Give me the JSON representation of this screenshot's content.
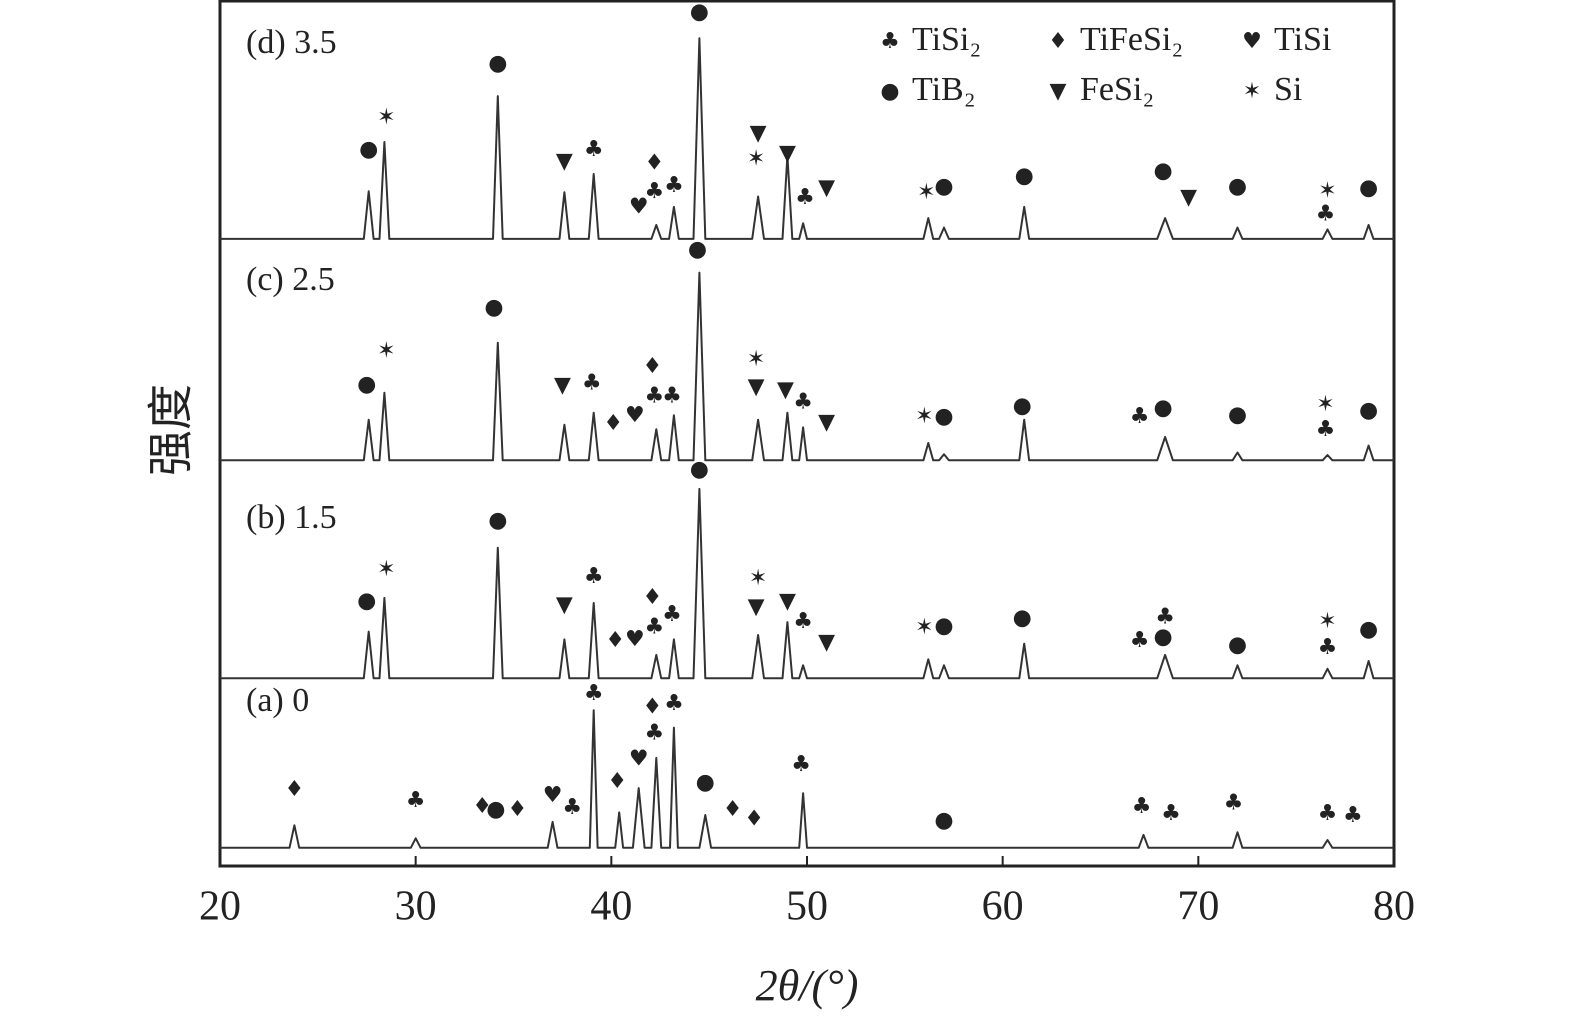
{
  "chart_data": {
    "type": "line",
    "xlabel": "2θ/(°)",
    "ylabel": "强度",
    "xlim": [
      20,
      80
    ],
    "xticks": [
      20,
      30,
      40,
      50,
      60,
      70,
      80
    ],
    "ylim": [
      0,
      100
    ],
    "legend": "upper right",
    "legend_items": [
      {
        "name": "TiSi₂",
        "symbol": "♣"
      },
      {
        "name": "TiFeSi₂",
        "symbol": "♦"
      },
      {
        "name": "TiSi",
        "symbol": "♥"
      },
      {
        "name": "TiB₂",
        "symbol": "●"
      },
      {
        "name": "FeSi₂",
        "symbol": "▼"
      },
      {
        "name": "Si",
        "symbol": "✶"
      }
    ],
    "series": [
      {
        "name": "(a) 0",
        "color": "#333333",
        "x": [
          20,
          23.55,
          23.8,
          24.05,
          29.75,
          30.0,
          30.25,
          36.75,
          37.0,
          37.25,
          38.9,
          39.1,
          39.3,
          40.2,
          40.4,
          40.6,
          41.1,
          41.4,
          41.7,
          42.05,
          42.3,
          42.55,
          43.0,
          43.2,
          43.4,
          44.5,
          44.8,
          45.1,
          49.6,
          49.8,
          50.0,
          66.95,
          67.2,
          67.45,
          71.75,
          72.0,
          72.25,
          76.35,
          76.6,
          76.85,
          80
        ],
        "values": [
          2.1,
          2.1,
          4.7,
          2.1,
          2.1,
          3.2,
          2.1,
          2.1,
          5.1,
          2.1,
          2.1,
          18.0,
          2.1,
          2.1,
          6.2,
          2.1,
          2.1,
          9.0,
          2.1,
          2.1,
          12.5,
          2.1,
          2.1,
          16.0,
          2.1,
          2.1,
          5.9,
          2.1,
          2.1,
          8.4,
          2.1,
          2.1,
          3.6,
          2.1,
          2.1,
          3.9,
          2.1,
          2.1,
          3.0,
          2.1,
          2.1
        ],
        "markers": [
          {
            "x": 23.8,
            "y": 8.8,
            "symbol": "♦"
          },
          {
            "x": 30.0,
            "y": 7.5,
            "symbol": "♣"
          },
          {
            "x": 33.4,
            "y": 6.8,
            "symbol": "♦"
          },
          {
            "x": 34.1,
            "y": 6.5,
            "symbol": "●"
          },
          {
            "x": 35.2,
            "y": 6.5,
            "symbol": "♦"
          },
          {
            "x": 37.0,
            "y": 8.1,
            "symbol": "♥"
          },
          {
            "x": 38.0,
            "y": 6.7,
            "symbol": "♣"
          },
          {
            "x": 39.1,
            "y": 19.9,
            "symbol": "♣"
          },
          {
            "x": 40.3,
            "y": 9.7,
            "symbol": "♦"
          },
          {
            "x": 41.4,
            "y": 12.3,
            "symbol": "♥"
          },
          {
            "x": 42.1,
            "y": 18.3,
            "symbol": "♦"
          },
          {
            "x": 42.2,
            "y": 15.3,
            "symbol": "♣"
          },
          {
            "x": 43.2,
            "y": 18.7,
            "symbol": "♣"
          },
          {
            "x": 44.8,
            "y": 9.6,
            "symbol": "●"
          },
          {
            "x": 46.2,
            "y": 6.5,
            "symbol": "♦"
          },
          {
            "x": 47.3,
            "y": 5.4,
            "symbol": "♦"
          },
          {
            "x": 49.7,
            "y": 11.7,
            "symbol": "♣"
          },
          {
            "x": 57.0,
            "y": 5.2,
            "symbol": "●"
          },
          {
            "x": 67.1,
            "y": 6.8,
            "symbol": "♣"
          },
          {
            "x": 68.6,
            "y": 6.0,
            "symbol": "♣"
          },
          {
            "x": 71.8,
            "y": 7.2,
            "symbol": "♣"
          },
          {
            "x": 76.6,
            "y": 6.0,
            "symbol": "♣"
          },
          {
            "x": 77.9,
            "y": 5.8,
            "symbol": "♣"
          }
        ]
      },
      {
        "name": "(b) 1.5",
        "color": "#333333",
        "x": [
          20,
          27.35,
          27.6,
          27.85,
          28.15,
          28.4,
          28.65,
          33.95,
          34.2,
          34.45,
          37.35,
          37.6,
          37.85,
          38.85,
          39.1,
          39.35,
          42.05,
          42.3,
          42.55,
          42.95,
          43.2,
          43.45,
          44.2,
          44.5,
          44.8,
          47.2,
          47.5,
          47.8,
          48.75,
          49.0,
          49.25,
          49.6,
          49.8,
          50.0,
          55.95,
          56.2,
          56.45,
          56.75,
          57.0,
          57.25,
          60.85,
          61.1,
          61.35,
          67.9,
          68.3,
          68.7,
          71.75,
          72.0,
          72.25,
          76.35,
          76.6,
          76.85,
          78.45,
          78.7,
          78.95,
          80
        ],
        "values": [
          21.7,
          21.7,
          27.1,
          21.7,
          21.7,
          31.0,
          21.7,
          21.7,
          36.8,
          21.7,
          21.7,
          26.2,
          21.7,
          21.7,
          30.4,
          21.7,
          21.7,
          24.4,
          21.7,
          21.7,
          26.2,
          21.7,
          21.7,
          43.6,
          21.7,
          21.7,
          26.7,
          21.7,
          21.7,
          28.2,
          21.7,
          21.7,
          23.2,
          21.7,
          21.7,
          23.9,
          21.7,
          21.7,
          23.2,
          21.7,
          21.7,
          25.7,
          21.7,
          21.7,
          24.4,
          21.7,
          21.7,
          23.2,
          21.7,
          21.7,
          22.8,
          21.7,
          21.7,
          23.7,
          21.7,
          21.7
        ],
        "markers": [
          {
            "x": 27.5,
            "y": 30.6,
            "symbol": "●"
          },
          {
            "x": 28.5,
            "y": 34.2,
            "symbol": "✶"
          },
          {
            "x": 34.2,
            "y": 39.9,
            "symbol": "●"
          },
          {
            "x": 37.6,
            "y": 30.1,
            "symbol": "▼"
          },
          {
            "x": 39.1,
            "y": 33.4,
            "symbol": "♣"
          },
          {
            "x": 40.2,
            "y": 26.0,
            "symbol": "♦"
          },
          {
            "x": 41.2,
            "y": 26.1,
            "symbol": "♥"
          },
          {
            "x": 42.1,
            "y": 31.0,
            "symbol": "♦"
          },
          {
            "x": 42.2,
            "y": 27.6,
            "symbol": "♣"
          },
          {
            "x": 43.1,
            "y": 29.0,
            "symbol": "♣"
          },
          {
            "x": 44.5,
            "y": 45.8,
            "symbol": "●"
          },
          {
            "x": 47.5,
            "y": 33.2,
            "symbol": "✶"
          },
          {
            "x": 47.4,
            "y": 29.9,
            "symbol": "▼"
          },
          {
            "x": 49.0,
            "y": 30.5,
            "symbol": "▼"
          },
          {
            "x": 49.8,
            "y": 28.2,
            "symbol": "♣"
          },
          {
            "x": 51.0,
            "y": 25.8,
            "symbol": "▼"
          },
          {
            "x": 56.0,
            "y": 27.5,
            "symbol": "✶"
          },
          {
            "x": 57.0,
            "y": 27.7,
            "symbol": "●"
          },
          {
            "x": 61.0,
            "y": 28.6,
            "symbol": "●"
          },
          {
            "x": 67.0,
            "y": 26.0,
            "symbol": "♣"
          },
          {
            "x": 68.2,
            "y": 26.4,
            "symbol": "●"
          },
          {
            "x": 68.3,
            "y": 28.7,
            "symbol": "♣"
          },
          {
            "x": 72.0,
            "y": 25.5,
            "symbol": "●"
          },
          {
            "x": 76.6,
            "y": 28.2,
            "symbol": "✶"
          },
          {
            "x": 76.6,
            "y": 25.2,
            "symbol": "♣"
          },
          {
            "x": 78.7,
            "y": 27.3,
            "symbol": "●"
          }
        ]
      },
      {
        "name": "(c) 2.5",
        "color": "#333333",
        "x": [
          20,
          27.35,
          27.6,
          27.85,
          28.15,
          28.4,
          28.65,
          33.95,
          34.2,
          34.45,
          37.35,
          37.6,
          37.85,
          38.85,
          39.1,
          39.35,
          42.05,
          42.3,
          42.55,
          42.95,
          43.2,
          43.45,
          44.2,
          44.5,
          44.8,
          47.2,
          47.5,
          47.8,
          48.75,
          49.0,
          49.25,
          49.6,
          49.8,
          50.0,
          55.95,
          56.2,
          56.45,
          56.75,
          57.0,
          57.25,
          60.85,
          61.1,
          61.35,
          67.9,
          68.3,
          68.7,
          71.75,
          72.0,
          72.25,
          76.35,
          76.6,
          76.85,
          78.45,
          78.7,
          78.95,
          80
        ],
        "values": [
          46.9,
          46.9,
          51.6,
          46.9,
          46.9,
          54.7,
          46.9,
          46.9,
          60.5,
          46.9,
          46.9,
          51.0,
          46.9,
          46.9,
          52.4,
          46.9,
          46.9,
          50.5,
          46.9,
          46.9,
          52.1,
          46.9,
          46.9,
          68.6,
          46.9,
          46.9,
          51.6,
          46.9,
          46.9,
          52.4,
          46.9,
          46.9,
          50.7,
          46.9,
          46.9,
          48.9,
          46.9,
          46.9,
          47.6,
          46.9,
          46.9,
          51.6,
          46.9,
          46.9,
          49.6,
          46.9,
          46.9,
          47.8,
          46.9,
          46.9,
          47.5,
          46.9,
          46.9,
          48.6,
          46.9,
          46.9
        ],
        "markers": [
          {
            "x": 27.5,
            "y": 55.6,
            "symbol": "●"
          },
          {
            "x": 28.5,
            "y": 59.5,
            "symbol": "✶"
          },
          {
            "x": 34.0,
            "y": 64.5,
            "symbol": "●"
          },
          {
            "x": 37.5,
            "y": 55.5,
            "symbol": "▼"
          },
          {
            "x": 39.0,
            "y": 55.8,
            "symbol": "♣"
          },
          {
            "x": 40.1,
            "y": 51.1,
            "symbol": "♦"
          },
          {
            "x": 41.2,
            "y": 52.0,
            "symbol": "♥"
          },
          {
            "x": 42.1,
            "y": 57.7,
            "symbol": "♦"
          },
          {
            "x": 42.2,
            "y": 54.3,
            "symbol": "♣"
          },
          {
            "x": 43.1,
            "y": 54.3,
            "symbol": "♣"
          },
          {
            "x": 44.4,
            "y": 71.2,
            "symbol": "●"
          },
          {
            "x": 47.4,
            "y": 58.5,
            "symbol": "✶"
          },
          {
            "x": 47.4,
            "y": 55.3,
            "symbol": "▼"
          },
          {
            "x": 48.9,
            "y": 55.0,
            "symbol": "▼"
          },
          {
            "x": 49.8,
            "y": 53.6,
            "symbol": "♣"
          },
          {
            "x": 51.0,
            "y": 51.2,
            "symbol": "▼"
          },
          {
            "x": 56.0,
            "y": 51.9,
            "symbol": "✶"
          },
          {
            "x": 57.0,
            "y": 51.9,
            "symbol": "●"
          },
          {
            "x": 61.0,
            "y": 53.1,
            "symbol": "●"
          },
          {
            "x": 67.0,
            "y": 51.9,
            "symbol": "♣"
          },
          {
            "x": 68.2,
            "y": 52.9,
            "symbol": "●"
          },
          {
            "x": 72.0,
            "y": 52.1,
            "symbol": "●"
          },
          {
            "x": 76.5,
            "y": 53.3,
            "symbol": "✶"
          },
          {
            "x": 76.5,
            "y": 50.4,
            "symbol": "♣"
          },
          {
            "x": 78.7,
            "y": 52.6,
            "symbol": "●"
          }
        ]
      },
      {
        "name": "(d) 3.5",
        "color": "#333333",
        "x": [
          20,
          27.35,
          27.6,
          27.85,
          28.15,
          28.4,
          28.65,
          33.95,
          34.2,
          34.45,
          37.35,
          37.6,
          37.85,
          38.85,
          39.1,
          39.35,
          42.05,
          42.3,
          42.55,
          42.95,
          43.2,
          43.45,
          44.2,
          44.5,
          44.8,
          47.2,
          47.5,
          47.8,
          48.75,
          49.0,
          49.25,
          49.6,
          49.8,
          50.0,
          55.95,
          56.2,
          56.45,
          56.75,
          57.0,
          57.25,
          60.85,
          61.1,
          61.35,
          67.9,
          68.3,
          68.7,
          71.75,
          72.0,
          72.25,
          76.35,
          76.6,
          76.85,
          78.45,
          78.7,
          78.95,
          80
        ],
        "values": [
          72.5,
          72.5,
          78.0,
          72.5,
          72.5,
          83.7,
          72.5,
          72.5,
          89.0,
          72.5,
          72.5,
          77.9,
          72.5,
          72.5,
          80.0,
          72.5,
          72.5,
          74.1,
          72.5,
          72.5,
          76.2,
          72.5,
          72.5,
          95.7,
          72.5,
          72.5,
          77.4,
          72.5,
          72.5,
          82.1,
          72.5,
          72.5,
          74.3,
          72.5,
          72.5,
          74.9,
          72.5,
          72.5,
          73.8,
          72.5,
          72.5,
          76.2,
          72.5,
          72.5,
          74.9,
          72.5,
          72.5,
          73.8,
          72.5,
          72.5,
          73.6,
          72.5,
          72.5,
          74.1,
          72.5,
          72.5
        ],
        "markers": [
          {
            "x": 27.6,
            "y": 82.8,
            "symbol": "●"
          },
          {
            "x": 28.5,
            "y": 86.5,
            "symbol": "✶"
          },
          {
            "x": 34.2,
            "y": 92.7,
            "symbol": "●"
          },
          {
            "x": 37.6,
            "y": 81.4,
            "symbol": "▼"
          },
          {
            "x": 39.1,
            "y": 82.8,
            "symbol": "♣"
          },
          {
            "x": 41.4,
            "y": 76.1,
            "symbol": "♥"
          },
          {
            "x": 42.2,
            "y": 81.2,
            "symbol": "♦"
          },
          {
            "x": 42.2,
            "y": 77.9,
            "symbol": "♣"
          },
          {
            "x": 43.2,
            "y": 78.6,
            "symbol": "♣"
          },
          {
            "x": 44.5,
            "y": 98.7,
            "symbol": "●"
          },
          {
            "x": 47.5,
            "y": 84.6,
            "symbol": "▼"
          },
          {
            "x": 47.4,
            "y": 81.7,
            "symbol": "✶"
          },
          {
            "x": 49.0,
            "y": 82.3,
            "symbol": "▼"
          },
          {
            "x": 49.9,
            "y": 77.2,
            "symbol": "♣"
          },
          {
            "x": 51.0,
            "y": 78.3,
            "symbol": "▼"
          },
          {
            "x": 56.1,
            "y": 77.8,
            "symbol": "✶"
          },
          {
            "x": 57.0,
            "y": 78.5,
            "symbol": "●"
          },
          {
            "x": 61.1,
            "y": 79.7,
            "symbol": "●"
          },
          {
            "x": 68.2,
            "y": 80.3,
            "symbol": "●"
          },
          {
            "x": 69.5,
            "y": 77.2,
            "symbol": "▼"
          },
          {
            "x": 72.0,
            "y": 78.5,
            "symbol": "●"
          },
          {
            "x": 76.6,
            "y": 78.0,
            "symbol": "✶"
          },
          {
            "x": 76.5,
            "y": 75.3,
            "symbol": "♣"
          },
          {
            "x": 78.7,
            "y": 78.3,
            "symbol": "●"
          }
        ]
      }
    ]
  }
}
